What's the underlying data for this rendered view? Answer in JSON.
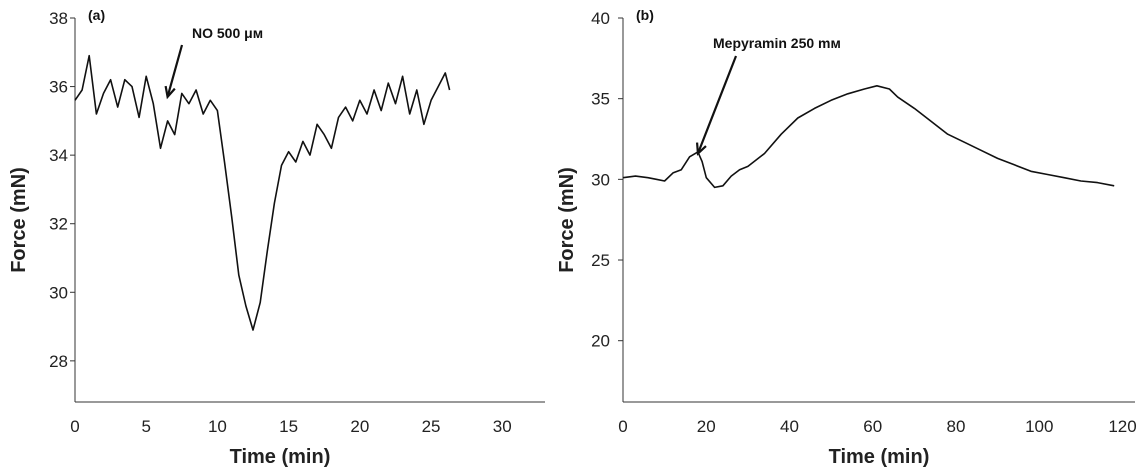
{
  "chart_data": [
    {
      "type": "line",
      "panel_label": "(a)",
      "xlabel": "Time (min)",
      "ylabel": "Force (mN)",
      "xlim": [
        0,
        33
      ],
      "ylim": [
        26.8,
        38
      ],
      "xticks": [
        0,
        5,
        10,
        15,
        20,
        25,
        30
      ],
      "yticks": [
        28,
        30,
        32,
        34,
        36,
        38
      ],
      "grid": false,
      "annotation": {
        "text": "NO 500 μм",
        "arrow_to": [
          6.5,
          35.7
        ]
      },
      "series": [
        {
          "color": "#111111",
          "x": [
            0,
            0.5,
            1,
            1.5,
            2,
            2.5,
            3,
            3.5,
            4,
            4.5,
            5,
            5.5,
            6,
            6.5,
            7,
            7.5,
            8,
            8.5,
            9,
            9.5,
            10,
            10.5,
            11,
            11.5,
            12,
            12.5,
            13,
            13.5,
            14,
            14.5,
            15,
            15.5,
            16,
            16.5,
            17,
            17.5,
            18,
            18.5,
            19,
            19.5,
            20,
            20.5,
            21,
            21.5,
            22,
            22.5,
            23,
            23.5,
            24,
            24.5,
            25,
            25.5,
            26,
            26.3
          ],
          "y": [
            35.6,
            35.9,
            36.9,
            35.2,
            35.8,
            36.2,
            35.4,
            36.2,
            36.0,
            35.1,
            36.3,
            35.5,
            34.2,
            35.0,
            34.6,
            35.8,
            35.5,
            35.9,
            35.2,
            35.6,
            35.3,
            33.8,
            32.2,
            30.5,
            29.6,
            28.9,
            29.7,
            31.2,
            32.6,
            33.7,
            34.1,
            33.8,
            34.4,
            34.0,
            34.9,
            34.6,
            34.2,
            35.1,
            35.4,
            35.0,
            35.6,
            35.2,
            35.9,
            35.3,
            36.1,
            35.5,
            36.3,
            35.2,
            35.9,
            34.9,
            35.6,
            36.0,
            36.4,
            35.9
          ]
        }
      ]
    },
    {
      "type": "line",
      "panel_label": "(b)",
      "xlabel": "Time (min)",
      "ylabel": "Force (mN)",
      "xlim": [
        0,
        123
      ],
      "ylim": [
        16.2,
        40
      ],
      "xticks": [
        0,
        20,
        40,
        60,
        80,
        100,
        120
      ],
      "yticks": [
        20,
        25,
        30,
        35,
        40
      ],
      "grid": false,
      "annotation": {
        "text": "Mepyramin 250 mм",
        "arrow_to": [
          18,
          31.6
        ]
      },
      "series": [
        {
          "color": "#111111",
          "x": [
            0,
            3,
            6,
            8,
            10,
            12,
            14,
            16,
            18,
            19,
            20,
            22,
            24,
            26,
            28,
            30,
            34,
            38,
            42,
            46,
            50,
            54,
            58,
            61,
            64,
            66,
            70,
            74,
            78,
            82,
            86,
            90,
            94,
            98,
            102,
            106,
            110,
            114,
            118
          ],
          "y": [
            30.1,
            30.2,
            30.1,
            30.0,
            29.9,
            30.4,
            30.6,
            31.4,
            31.7,
            31.1,
            30.1,
            29.5,
            29.6,
            30.2,
            30.6,
            30.8,
            31.6,
            32.8,
            33.8,
            34.4,
            34.9,
            35.3,
            35.6,
            35.8,
            35.6,
            35.1,
            34.4,
            33.6,
            32.8,
            32.3,
            31.8,
            31.3,
            30.9,
            30.5,
            30.3,
            30.1,
            29.9,
            29.8,
            29.6
          ]
        }
      ]
    }
  ]
}
